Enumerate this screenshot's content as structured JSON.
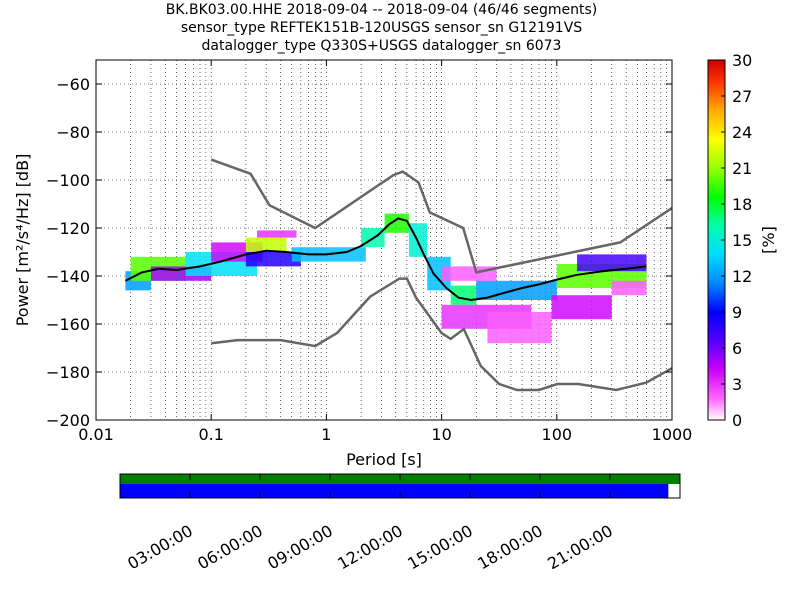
{
  "chart_data": {
    "type": "heatmap",
    "title_lines": [
      "BK.BK03.00.HHE   2018-09-04 -- 2018-09-04  (46/46 segments)",
      "sensor_type REFTEK151B-120USGS sensor_sn G12191VS",
      "datalogger_type Q330S+USGS datalogger_sn 6073"
    ],
    "xlabel": "Period [s]",
    "ylabel": "Power [m²/s⁴/Hz] [dB]",
    "xscale": "log",
    "xlim": [
      0.01,
      1000
    ],
    "ylim": [
      -200,
      -50
    ],
    "xticks": [
      {
        "value": 0.01,
        "label": "0.01"
      },
      {
        "value": 0.1,
        "label": "0.1"
      },
      {
        "value": 1,
        "label": "1"
      },
      {
        "value": 10,
        "label": "10"
      },
      {
        "value": 100,
        "label": "100"
      },
      {
        "value": 1000,
        "label": "1000"
      }
    ],
    "yticks": [
      -60,
      -80,
      -100,
      -120,
      -140,
      -160,
      -180,
      -200
    ],
    "grid": true,
    "colorbar": {
      "label": "[%]",
      "range": [
        0,
        30
      ],
      "ticks": [
        0,
        3,
        6,
        9,
        12,
        15,
        18,
        21,
        24,
        27,
        30
      ]
    },
    "noise_models": [
      {
        "name": "high",
        "points": [
          [
            0.1,
            -91.5
          ],
          [
            0.22,
            -97.4
          ],
          [
            0.32,
            -110.5
          ],
          [
            0.8,
            -120
          ],
          [
            3.8,
            -98
          ],
          [
            4.6,
            -96.5
          ],
          [
            6.3,
            -101
          ],
          [
            7.9,
            -113.5
          ],
          [
            15.4,
            -120
          ],
          [
            20,
            -138.5
          ],
          [
            354.8,
            -126
          ],
          [
            10000,
            -80
          ]
        ]
      },
      {
        "name": "low",
        "points": [
          [
            0.1,
            -168
          ],
          [
            0.17,
            -166.7
          ],
          [
            0.4,
            -166.7
          ],
          [
            0.8,
            -169.2
          ],
          [
            1.24,
            -163.7
          ],
          [
            2.4,
            -148.6
          ],
          [
            4.3,
            -141.1
          ],
          [
            5,
            -141.1
          ],
          [
            6,
            -149
          ],
          [
            10,
            -163.8
          ],
          [
            12,
            -166.2
          ],
          [
            15.6,
            -162.1
          ],
          [
            21.9,
            -177.5
          ],
          [
            31.6,
            -185
          ],
          [
            45,
            -187.5
          ],
          [
            70,
            -187.5
          ],
          [
            101,
            -185
          ],
          [
            154,
            -185
          ],
          [
            328,
            -187.5
          ],
          [
            600,
            -184.4
          ],
          [
            10000,
            -151.5
          ]
        ]
      }
    ],
    "mean_curve": [
      [
        0.018,
        -142
      ],
      [
        0.025,
        -138.5
      ],
      [
        0.035,
        -137
      ],
      [
        0.05,
        -137.5
      ],
      [
        0.08,
        -136
      ],
      [
        0.12,
        -134
      ],
      [
        0.2,
        -131
      ],
      [
        0.3,
        -129.5
      ],
      [
        0.45,
        -130
      ],
      [
        0.7,
        -131
      ],
      [
        1.0,
        -131
      ],
      [
        1.5,
        -130
      ],
      [
        2.0,
        -127.5
      ],
      [
        2.8,
        -123
      ],
      [
        3.5,
        -118.5
      ],
      [
        4.2,
        -116
      ],
      [
        5.0,
        -117
      ],
      [
        6.0,
        -124
      ],
      [
        7.0,
        -131
      ],
      [
        8.5,
        -139
      ],
      [
        11,
        -145
      ],
      [
        14,
        -149
      ],
      [
        18,
        -150
      ],
      [
        25,
        -149
      ],
      [
        35,
        -147
      ],
      [
        50,
        -145
      ],
      [
        70,
        -143.5
      ],
      [
        100,
        -141.5
      ],
      [
        150,
        -139.5
      ],
      [
        250,
        -138
      ],
      [
        400,
        -137
      ],
      [
        600,
        -136
      ]
    ],
    "hit_bands": [
      {
        "tmin": 0.018,
        "tmax": 0.03,
        "ymin": -146,
        "ymax": -138,
        "pct": 12
      },
      {
        "tmin": 0.02,
        "tmax": 0.06,
        "ymin": -142,
        "ymax": -132,
        "pct": 20
      },
      {
        "tmin": 0.03,
        "tmax": 0.1,
        "ymin": -142,
        "ymax": -136,
        "pct": 5
      },
      {
        "tmin": 0.06,
        "tmax": 0.25,
        "ymin": -140,
        "ymax": -130,
        "pct": 14
      },
      {
        "tmin": 0.1,
        "tmax": 0.28,
        "ymin": -134,
        "ymax": -126,
        "pct": 4
      },
      {
        "tmin": 0.2,
        "tmax": 0.45,
        "ymin": -130,
        "ymax": -124,
        "pct": 22
      },
      {
        "tmin": 0.2,
        "tmax": 0.6,
        "ymin": -136,
        "ymax": -130,
        "pct": 8
      },
      {
        "tmin": 0.25,
        "tmax": 0.55,
        "ymin": -124,
        "ymax": -121,
        "pct": 3
      },
      {
        "tmin": 0.5,
        "tmax": 2.2,
        "ymin": -134,
        "ymax": -128,
        "pct": 13
      },
      {
        "tmin": 2.0,
        "tmax": 3.2,
        "ymin": -128,
        "ymax": -120,
        "pct": 16
      },
      {
        "tmin": 3.2,
        "tmax": 5.2,
        "ymin": -122,
        "ymax": -114,
        "pct": 19
      },
      {
        "tmin": 5.2,
        "tmax": 7.5,
        "ymin": -132,
        "ymax": -118,
        "pct": 15
      },
      {
        "tmin": 7.5,
        "tmax": 12,
        "ymin": -146,
        "ymax": -132,
        "pct": 13
      },
      {
        "tmin": 12,
        "tmax": 20,
        "ymin": -152,
        "ymax": -144,
        "pct": 17
      },
      {
        "tmin": 20,
        "tmax": 100,
        "ymin": -150,
        "ymax": -142,
        "pct": 12
      },
      {
        "tmin": 100,
        "tmax": 600,
        "ymin": -145,
        "ymax": -135,
        "pct": 20
      },
      {
        "tmin": 150,
        "tmax": 600,
        "ymin": -138,
        "ymax": -131,
        "pct": 7
      },
      {
        "tmin": 10,
        "tmax": 30,
        "ymin": -142,
        "ymax": -136,
        "pct": 2
      },
      {
        "tmin": 10,
        "tmax": 60,
        "ymin": -162,
        "ymax": -152,
        "pct": 3
      },
      {
        "tmin": 25,
        "tmax": 90,
        "ymin": -168,
        "ymax": -155,
        "pct": 2
      },
      {
        "tmin": 90,
        "tmax": 300,
        "ymin": -158,
        "ymax": -148,
        "pct": 4
      },
      {
        "tmin": 300,
        "tmax": 600,
        "ymin": -148,
        "ymax": -142,
        "pct": 2
      }
    ],
    "time_axis": {
      "labels": [
        "03:00:00",
        "06:00:00",
        "09:00:00",
        "12:00:00",
        "15:00:00",
        "18:00:00",
        "21:00:00"
      ],
      "hours": [
        3,
        6,
        9,
        12,
        15,
        18,
        21
      ],
      "range_hours": [
        0,
        24
      ],
      "data_coverage": [
        0,
        23.5
      ],
      "colors": {
        "data_bar": "#0000ff",
        "gap_bar": "#008000"
      }
    }
  }
}
